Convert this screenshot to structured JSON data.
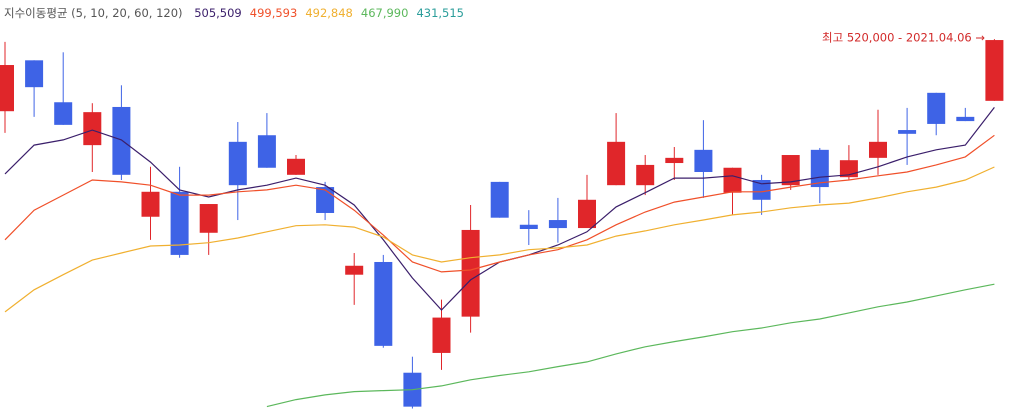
{
  "chart_data": {
    "type": "candlestick",
    "legend_title": "지수이동평균 (5, 10, 20, 60, 120)",
    "annotation": "최고 520,000 - 2021.04.06 →",
    "up_color": "#e0262a",
    "down_color": "#3e63e6",
    "categories": [
      null,
      null,
      null,
      null,
      null,
      null,
      null,
      null,
      null,
      null,
      null,
      null,
      null,
      null,
      null,
      null,
      null,
      null,
      null,
      null,
      null,
      null,
      null,
      null,
      null,
      null,
      null,
      null,
      null,
      null,
      null,
      null,
      null,
      null,
      null
    ],
    "open": [
      504700,
      515500,
      506600,
      497500,
      505600,
      482300,
      487600,
      478900,
      498200,
      499600,
      491200,
      488600,
      470000,
      472700,
      449200,
      453400,
      461100,
      489700,
      480600,
      481600,
      479900,
      489000,
      489000,
      493700,
      496500,
      487400,
      490100,
      489000,
      496500,
      490700,
      494800,
      500700,
      508600,
      503500,
      506900
    ],
    "high": [
      519400,
      515500,
      517200,
      506400,
      510200,
      492900,
      492900,
      485000,
      502400,
      504300,
      495400,
      489700,
      474600,
      474200,
      452600,
      464700,
      484800,
      489700,
      483700,
      486300,
      491200,
      504300,
      495400,
      497100,
      502800,
      492700,
      491200,
      495400,
      496900,
      497500,
      505000,
      505400,
      508600,
      505400,
      520000
    ],
    "low": [
      500100,
      503500,
      501800,
      491800,
      490100,
      477400,
      473600,
      474200,
      481600,
      492700,
      491200,
      481600,
      463600,
      454500,
      441600,
      449800,
      457700,
      482100,
      476300,
      476800,
      479900,
      489000,
      486900,
      490100,
      486300,
      482700,
      482700,
      488000,
      485200,
      490100,
      491200,
      493300,
      499600,
      502600,
      506900
    ],
    "close": [
      514500,
      509800,
      501800,
      504500,
      491200,
      487600,
      474200,
      485000,
      489000,
      492700,
      494600,
      483100,
      471900,
      454900,
      442000,
      460900,
      479500,
      482100,
      479700,
      479900,
      485900,
      498200,
      493300,
      494800,
      491800,
      492700,
      485900,
      495400,
      488600,
      494300,
      498200,
      499900,
      502000,
      502600,
      519800
    ],
    "moving_averages": [
      {
        "color": "#3b1f6b",
        "current_label": "505,509",
        "values": [
          491400,
          497500,
          498600,
          500700,
          498600,
          493900,
          488000,
          486500,
          488000,
          489000,
          490500,
          489000,
          484800,
          477400,
          469300,
          462500,
          468900,
          472700,
          474200,
          476300,
          479100,
          484400,
          487400,
          490500,
          490500,
          491000,
          489300,
          489700,
          490700,
          491200,
          492900,
          495000,
          496500,
          497500,
          505509
        ]
      },
      {
        "color": "#f0502a",
        "current_label": "499,593",
        "values": [
          477400,
          483700,
          486900,
          490100,
          489700,
          489000,
          486900,
          486900,
          487600,
          488000,
          489000,
          488000,
          483700,
          478400,
          472700,
          470600,
          471000,
          472700,
          474200,
          475300,
          477400,
          480600,
          483300,
          485400,
          486500,
          487600,
          487600,
          488600,
          489500,
          490100,
          491000,
          491800,
          493300,
          495000,
          499593
        ]
      },
      {
        "color": "#f0b030",
        "current_label": "492,848",
        "values": [
          462100,
          466800,
          470000,
          473100,
          474600,
          476100,
          476300,
          476800,
          477800,
          479100,
          480400,
          480600,
          480100,
          478000,
          474200,
          472700,
          473600,
          474200,
          475300,
          475700,
          476300,
          478200,
          479300,
          480600,
          481600,
          482700,
          483300,
          484200,
          484800,
          485200,
          486300,
          487600,
          488600,
          490100,
          492848
        ]
      },
      {
        "color": "#5cb85c",
        "current_label": "467,990",
        "values": [
          null,
          null,
          null,
          null,
          null,
          null,
          null,
          null,
          null,
          442000,
          443500,
          444500,
          445200,
          445400,
          445600,
          446400,
          447700,
          448600,
          449400,
          450500,
          451500,
          453200,
          454700,
          455800,
          456800,
          457900,
          458700,
          459800,
          460600,
          461900,
          463200,
          464200,
          465500,
          466800,
          467990
        ]
      },
      {
        "color": "#2a9d9a",
        "current_label": "431,515"
      }
    ],
    "ylim": [
      441500,
      528300
    ]
  }
}
